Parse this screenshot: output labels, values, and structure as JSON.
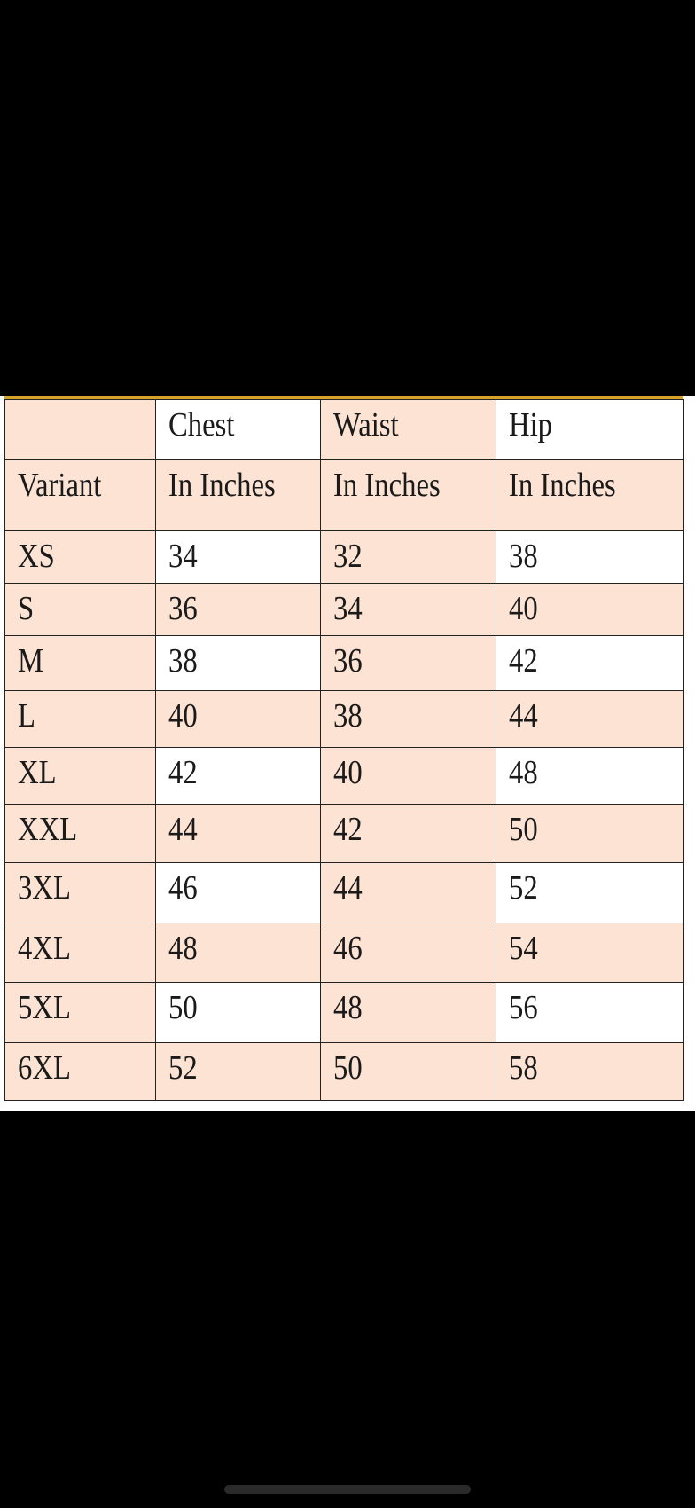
{
  "size_chart": {
    "header_row1": [
      "",
      "Chest",
      "Waist",
      "Hip"
    ],
    "header_row2": [
      "Variant",
      "In Inches",
      "In Inches",
      "In Inches"
    ],
    "rows": [
      [
        "XS",
        "34",
        "32",
        "38"
      ],
      [
        "S",
        "36",
        "34",
        "40"
      ],
      [
        "M",
        "38",
        "36",
        "42"
      ],
      [
        "L",
        "40",
        "38",
        "44"
      ],
      [
        "XL",
        "42",
        "40",
        "48"
      ],
      [
        "XXL",
        "44",
        "42",
        "50"
      ],
      [
        "3XL",
        "46",
        "44",
        "52"
      ],
      [
        "4XL",
        "48",
        "46",
        "54"
      ],
      [
        "5XL",
        "50",
        "48",
        "56"
      ],
      [
        "6XL",
        "52",
        "50",
        "58"
      ]
    ]
  },
  "colors": {
    "peach": "#fde3d3",
    "accent_line": "#d4a52a",
    "background": "#000000"
  }
}
